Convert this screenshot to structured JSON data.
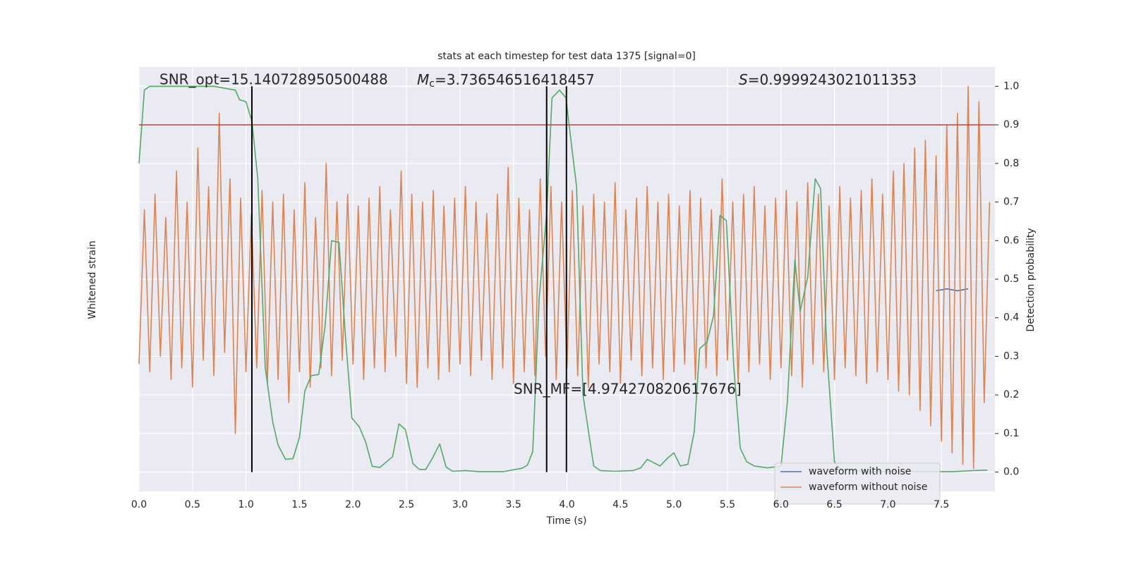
{
  "chart_data": {
    "type": "line",
    "title": "stats at each timestep for test data 1375 [signal=0]",
    "x_label": "Time (s)",
    "y_label_left": "Whitened strain",
    "y_label": "Detection probability",
    "xlim": [
      0,
      8
    ],
    "xticks": [
      {
        "value": 0,
        "label": "0.0"
      },
      0.5,
      {
        "value": 1,
        "label": "1.0"
      },
      1.5,
      {
        "value": 2,
        "label": "2.0"
      },
      2.5,
      {
        "value": 3,
        "label": "3.0"
      },
      3.5,
      {
        "value": 4,
        "label": "4.0"
      },
      4.5,
      {
        "value": 5,
        "label": "5.0"
      },
      5.5,
      {
        "value": 6,
        "label": "6.0"
      },
      6.5,
      {
        "value": 7,
        "label": "7.0"
      },
      7.5
    ],
    "ylim": [
      -0.05,
      1.05
    ],
    "yticks": [
      {
        "value": 0,
        "label": "0.0"
      },
      0.1,
      0.2,
      0.3,
      0.4,
      0.5,
      0.6,
      0.7,
      0.8,
      0.9,
      {
        "value": 1,
        "label": "1.0"
      }
    ],
    "ytick_side": "right",
    "grid": true,
    "legend": "lower right",
    "series": [
      {
        "name": "waveform with noise",
        "color": "#4c72b0",
        "legend": true,
        "x": [
          7.45,
          7.55,
          7.65,
          7.75
        ],
        "values": [
          0.47,
          0.475,
          0.47,
          0.475
        ]
      },
      {
        "name": "waveform without noise",
        "color": "#dd8452",
        "legend": true,
        "x": [
          0,
          0.05,
          0.1,
          0.15,
          0.2,
          0.25,
          0.3,
          0.35,
          0.4,
          0.45,
          0.5,
          0.55,
          0.6,
          0.65,
          0.7,
          0.75,
          0.8,
          0.85,
          0.9,
          0.95,
          1,
          1.05,
          1.1,
          1.15,
          1.2,
          1.25,
          1.3,
          1.35,
          1.4,
          1.45,
          1.5,
          1.55,
          1.6,
          1.65,
          1.7,
          1.75,
          1.8,
          1.85,
          1.9,
          1.95,
          2,
          2.05,
          2.1,
          2.15,
          2.2,
          2.25,
          2.3,
          2.35,
          2.4,
          2.45,
          2.5,
          2.55,
          2.6,
          2.65,
          2.7,
          2.75,
          2.8,
          2.85,
          2.9,
          2.95,
          3,
          3.05,
          3.1,
          3.15,
          3.2,
          3.25,
          3.3,
          3.35,
          3.4,
          3.45,
          3.5,
          3.55,
          3.6,
          3.65,
          3.7,
          3.75,
          3.8,
          3.85,
          3.9,
          3.95,
          4,
          4.05,
          4.1,
          4.15,
          4.2,
          4.25,
          4.3,
          4.35,
          4.4,
          4.45,
          4.5,
          4.55,
          4.6,
          4.65,
          4.7,
          4.75,
          4.8,
          4.85,
          4.9,
          4.95,
          5,
          5.05,
          5.1,
          5.15,
          5.2,
          5.25,
          5.3,
          5.35,
          5.4,
          5.45,
          5.5,
          5.55,
          5.6,
          5.65,
          5.7,
          5.75,
          5.8,
          5.85,
          5.9,
          5.95,
          6,
          6.05,
          6.1,
          6.15,
          6.2,
          6.25,
          6.3,
          6.35,
          6.4,
          6.45,
          6.5,
          6.55,
          6.6,
          6.65,
          6.7,
          6.75,
          6.8,
          6.85,
          6.9,
          6.95,
          7,
          7.05,
          7.1,
          7.15,
          7.2,
          7.25,
          7.3,
          7.35,
          7.4,
          7.45,
          7.5,
          7.55,
          7.6,
          7.65,
          7.7,
          7.75,
          7.8,
          7.85,
          7.9,
          7.95
        ],
        "values": [
          0.28,
          0.68,
          0.26,
          0.72,
          0.3,
          0.66,
          0.24,
          0.78,
          0.27,
          0.7,
          0.22,
          0.84,
          0.29,
          0.74,
          0.25,
          0.93,
          0.31,
          0.76,
          0.1,
          0.71,
          0.26,
          0.67,
          0.27,
          0.73,
          0.23,
          0.7,
          0.24,
          0.72,
          0.18,
          0.68,
          0.26,
          0.75,
          0.22,
          0.66,
          0.27,
          0.8,
          0.25,
          0.7,
          0.29,
          0.72,
          0.28,
          0.69,
          0.24,
          0.71,
          0.27,
          0.74,
          0.26,
          0.68,
          0.3,
          0.78,
          0.23,
          0.72,
          0.22,
          0.7,
          0.27,
          0.73,
          0.24,
          0.69,
          0.26,
          0.71,
          0.28,
          0.74,
          0.25,
          0.7,
          0.29,
          0.67,
          0.24,
          0.72,
          0.27,
          0.79,
          0.23,
          0.71,
          0.26,
          0.68,
          0.25,
          0.76,
          0.3,
          0.74,
          0.24,
          0.7,
          0.27,
          0.73,
          0.25,
          0.69,
          0.22,
          0.72,
          0.28,
          0.7,
          0.26,
          0.75,
          0.23,
          0.68,
          0.29,
          0.71,
          0.25,
          0.74,
          0.27,
          0.7,
          0.24,
          0.72,
          0.26,
          0.69,
          0.28,
          0.73,
          0.24,
          0.71,
          0.27,
          0.68,
          0.25,
          0.76,
          0.29,
          0.7,
          0.23,
          0.72,
          0.26,
          0.74,
          0.28,
          0.69,
          0.24,
          0.71,
          0.27,
          0.73,
          0.25,
          0.7,
          0.22,
          0.75,
          0.28,
          0.72,
          0.26,
          0.69,
          0.24,
          0.74,
          0.27,
          0.71,
          0.25,
          0.73,
          0.23,
          0.76,
          0.26,
          0.72,
          0.24,
          0.78,
          0.21,
          0.8,
          0.2,
          0.84,
          0.16,
          0.86,
          0.12,
          0.82,
          0.08,
          0.9,
          0.05,
          0.93,
          0.02,
          1.0,
          0.01,
          0.96,
          0.18,
          0.7
        ]
      },
      {
        "color": "#55a868",
        "legend": false,
        "x": [
          0,
          0.05,
          0.1,
          0.3,
          0.5,
          0.7,
          0.9,
          0.94,
          1.0,
          1.055,
          1.11,
          1.18,
          1.25,
          1.3,
          1.37,
          1.44,
          1.5,
          1.55,
          1.61,
          1.68,
          1.74,
          1.8,
          1.87,
          1.93,
          1.99,
          2.06,
          2.12,
          2.18,
          2.25,
          2.37,
          2.43,
          2.49,
          2.56,
          2.62,
          2.68,
          2.74,
          2.81,
          2.87,
          2.93,
          3.05,
          3.18,
          3.4,
          3.58,
          3.63,
          3.68,
          3.74,
          3.81,
          3.86,
          3.93,
          3.99,
          4.05,
          4.09,
          4.15,
          4.25,
          4.31,
          4.45,
          4.62,
          4.69,
          4.75,
          4.87,
          4.94,
          5.0,
          5.06,
          5.13,
          5.19,
          5.24,
          5.31,
          5.37,
          5.43,
          5.49,
          5.56,
          5.62,
          5.68,
          5.75,
          5.87,
          6.0,
          6.06,
          6.13,
          6.18,
          6.25,
          6.32,
          6.37,
          6.43,
          6.5,
          6.56,
          6.8,
          7.2,
          7.6,
          7.8,
          7.93
        ],
        "values": [
          0.8,
          0.99,
          1.0,
          1.0,
          1.0,
          1.0,
          0.99,
          0.965,
          0.96,
          0.91,
          0.76,
          0.27,
          0.13,
          0.07,
          0.033,
          0.035,
          0.09,
          0.21,
          0.25,
          0.253,
          0.38,
          0.6,
          0.595,
          0.35,
          0.14,
          0.117,
          0.077,
          0.015,
          0.012,
          0.04,
          0.125,
          0.11,
          0.022,
          0.007,
          0.007,
          0.035,
          0.073,
          0.013,
          0.002,
          0.004,
          0.001,
          0.001,
          0.01,
          0.018,
          0.053,
          0.45,
          0.67,
          0.97,
          0.99,
          0.97,
          0.83,
          0.74,
          0.2,
          0.016,
          0.004,
          0.002,
          0.004,
          0.011,
          0.033,
          0.016,
          0.036,
          0.05,
          0.016,
          0.02,
          0.105,
          0.32,
          0.337,
          0.405,
          0.665,
          0.652,
          0.27,
          0.062,
          0.027,
          0.016,
          0.011,
          0.015,
          0.18,
          0.55,
          0.417,
          0.506,
          0.76,
          0.735,
          0.31,
          0.027,
          0.007,
          0.001,
          0.001,
          0.001,
          0.004,
          0.005
        ]
      }
    ],
    "threshold": {
      "y": 0.9,
      "color": "#c03d3e"
    },
    "vlines": {
      "x": [
        1.055,
        3.81,
        3.995
      ],
      "range": [
        0,
        1
      ],
      "color": "#000000"
    },
    "annotations": [
      {
        "text": "SNR_opt=15.140728950500488"
      },
      {
        "symbol": "M",
        "subscript": "c",
        "text": "=3.736546516418457"
      },
      {
        "symbol": "S",
        "text": "=0.9999243021011353"
      },
      {
        "text": "SNR_MF=[4.974270820617676]"
      }
    ]
  }
}
